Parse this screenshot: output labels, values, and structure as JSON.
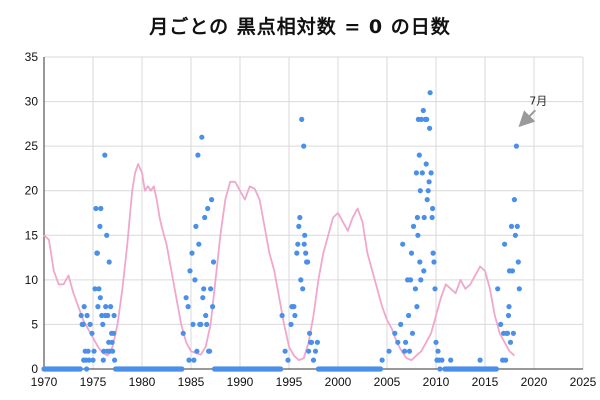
{
  "colors": {
    "points": "#4a8fe8",
    "smoothed": "#f1a7cc",
    "grid": "#d9d9d9",
    "axis": "#333333",
    "arrow": "#9a9a9a"
  },
  "chart_data": {
    "type": "scatter",
    "title": "月ごとの 黒点相対数 = 0 の日数",
    "xlabel": "",
    "ylabel": "",
    "xlim": [
      1970,
      2025
    ],
    "ylim": [
      0,
      35
    ],
    "x_ticks": [
      1970,
      1975,
      1980,
      1985,
      1990,
      1995,
      2000,
      2005,
      2010,
      2015,
      2020,
      2025
    ],
    "y_ticks": [
      0,
      5,
      10,
      15,
      20,
      25,
      30,
      35
    ],
    "grid": true,
    "annotation": {
      "text": "7月",
      "x": 2018.5,
      "y": 27
    },
    "series": [
      {
        "style": "points",
        "x": [
          1973.8,
          1974.0,
          1974.2,
          1974.4,
          1974.6,
          1973.9,
          1974.1,
          1974.3,
          1974.5,
          1974.7,
          1974.9,
          1973.7,
          1974.05,
          1974.35,
          1975.0,
          1975.1,
          1975.2,
          1975.3,
          1975.4,
          1975.5,
          1975.6,
          1975.7,
          1975.8,
          1975.9,
          1976.0,
          1976.1,
          1976.2,
          1976.3,
          1976.4,
          1976.5,
          1976.6,
          1976.7,
          1976.8,
          1976.9,
          1977.0,
          1977.1,
          1977.2,
          1977.3,
          1975.45,
          1975.75,
          1976.05,
          1976.25,
          1976.45,
          1976.65,
          1976.95,
          1977.15,
          1984.2,
          1984.5,
          1984.7,
          1984.9,
          1985.1,
          1985.3,
          1985.5,
          1985.7,
          1985.9,
          1986.1,
          1986.3,
          1986.5,
          1986.7,
          1986.9,
          1987.1,
          1987.3,
          1985.4,
          1985.6,
          1985.8,
          1986.0,
          1986.2,
          1986.4,
          1986.6,
          1986.8,
          1987.0,
          1987.2,
          1985.2,
          1984.8,
          1994.3,
          1994.6,
          1994.9,
          1995.2,
          1995.5,
          1995.8,
          1996.0,
          1996.1,
          1996.3,
          1996.5,
          1996.7,
          1996.9,
          1997.1,
          1997.3,
          1997.5,
          1997.7,
          1997.9,
          1995.3,
          1995.6,
          1995.9,
          1996.2,
          1996.4,
          1996.6,
          1996.8,
          1997.0,
          1997.2,
          1996.55,
          2004.5,
          2005.2,
          2005.8,
          2006.1,
          2006.4,
          2006.6,
          2006.9,
          2007.1,
          2007.3,
          2007.5,
          2007.7,
          2007.9,
          2008.0,
          2008.1,
          2008.2,
          2008.3,
          2008.4,
          2008.5,
          2008.6,
          2008.7,
          2008.8,
          2008.9,
          2009.0,
          2009.1,
          2009.2,
          2009.3,
          2009.4,
          2009.5,
          2009.6,
          2009.7,
          2009.8,
          2009.9,
          2010.0,
          2010.1,
          2010.2,
          2010.3,
          2010.4,
          2010.6,
          2010.9,
          2007.2,
          2007.6,
          2008.15,
          2008.45,
          2008.75,
          2009.05,
          2009.35,
          2009.65,
          2006.8,
          2007.4,
          2008.05,
          2008.35,
          2011.5,
          2014.5,
          2016.3,
          2016.6,
          2016.8,
          2017.0,
          2017.2,
          2017.3,
          2017.4,
          2017.5,
          2017.6,
          2017.7,
          2017.8,
          2017.9,
          2018.0,
          2018.1,
          2018.2,
          2018.3,
          2018.4,
          2018.5,
          2016.9,
          2017.1,
          2017.45
        ],
        "y": [
          6,
          5,
          2,
          6,
          1,
          5,
          7,
          1,
          2,
          5,
          4,
          0,
          1,
          0,
          1,
          2,
          9,
          18,
          13,
          7,
          9,
          16,
          18,
          6,
          5,
          2,
          24,
          7,
          15,
          6,
          3,
          2,
          7,
          4,
          2,
          4,
          1,
          0,
          13,
          8,
          1,
          6,
          2,
          12,
          3,
          6,
          4,
          8,
          7,
          11,
          13,
          1,
          16,
          24,
          5,
          26,
          9,
          6,
          18,
          2,
          19,
          12,
          10,
          2,
          14,
          5,
          8,
          17,
          5,
          2,
          9,
          7,
          5,
          1,
          6,
          2,
          1,
          5,
          7,
          13,
          16,
          17,
          28,
          25,
          13,
          12,
          4,
          3,
          1,
          2,
          3,
          7,
          6,
          14,
          10,
          9,
          15,
          12,
          2,
          3,
          14,
          1,
          2,
          4,
          3,
          5,
          14,
          3,
          10,
          2,
          13,
          16,
          9,
          22,
          17,
          28,
          24,
          20,
          28,
          22,
          29,
          17,
          28,
          23,
          19,
          20,
          21,
          31,
          22,
          17,
          13,
          12,
          9,
          3,
          1,
          2,
          1,
          0,
          1,
          0,
          6,
          4,
          15,
          10,
          11,
          28,
          27,
          18,
          2,
          10,
          7,
          12,
          1,
          1,
          9,
          5,
          1,
          14,
          4,
          4,
          6,
          11,
          3,
          16,
          11,
          4,
          19,
          15,
          25,
          16,
          12,
          9,
          4,
          1,
          7
        ]
      },
      {
        "style": "smoothed-line",
        "x": [
          1970,
          1970.5,
          1971,
          1971.5,
          1972,
          1972.5,
          1973,
          1973.5,
          1974,
          1974.5,
          1975,
          1975.5,
          1976,
          1976.5,
          1977,
          1977.5,
          1978,
          1978.5,
          1979,
          1979.3,
          1979.6,
          1980,
          1980.3,
          1980.6,
          1980.9,
          1981.2,
          1981.5,
          1981.8,
          1982,
          1982.5,
          1983,
          1983.5,
          1984,
          1984.5,
          1985,
          1985.5,
          1986,
          1986.5,
          1987,
          1987.5,
          1988,
          1988.5,
          1989,
          1989.5,
          1990,
          1990.5,
          1991,
          1991.5,
          1992,
          1992.5,
          1993,
          1993.5,
          1994,
          1994.5,
          1995,
          1995.5,
          1996,
          1996.5,
          1997,
          1997.5,
          1998,
          1998.5,
          1999,
          1999.5,
          2000,
          2000.5,
          2001,
          2001.5,
          2002,
          2002.5,
          2003,
          2003.5,
          2004,
          2004.5,
          2005,
          2005.5,
          2006,
          2006.5,
          2007,
          2007.5,
          2008,
          2008.5,
          2009,
          2009.5,
          2010,
          2010.5,
          2011,
          2011.5,
          2012,
          2012.5,
          2013,
          2013.5,
          2014,
          2014.5,
          2015,
          2015.5,
          2016,
          2016.5,
          2017,
          2017.5,
          2018
        ],
        "y": [
          15,
          14.5,
          11,
          9.5,
          9.5,
          10.5,
          8.5,
          7,
          5.5,
          4.5,
          3.5,
          2.5,
          1.8,
          1.5,
          2.5,
          5,
          9,
          14,
          20,
          22,
          23,
          22,
          20,
          20.5,
          20,
          20.5,
          19,
          17,
          16,
          14,
          11,
          8,
          5,
          3,
          2,
          1.8,
          1.6,
          2.5,
          5,
          10,
          15,
          19,
          21,
          21,
          20,
          19,
          20.5,
          20.2,
          19,
          16,
          13,
          11,
          8,
          5,
          2.5,
          1.5,
          1,
          1.2,
          3,
          6,
          10,
          13,
          15,
          17,
          17.5,
          16.5,
          15.5,
          17,
          18,
          16.5,
          13,
          11,
          9,
          7,
          5.5,
          4.5,
          3,
          2,
          1.2,
          1,
          1.5,
          2,
          3,
          4,
          6,
          8,
          9.5,
          9,
          8.5,
          10,
          9,
          9.5,
          10.5,
          11.5,
          11,
          9,
          6,
          4,
          3,
          2,
          1.5
        ]
      }
    ]
  }
}
